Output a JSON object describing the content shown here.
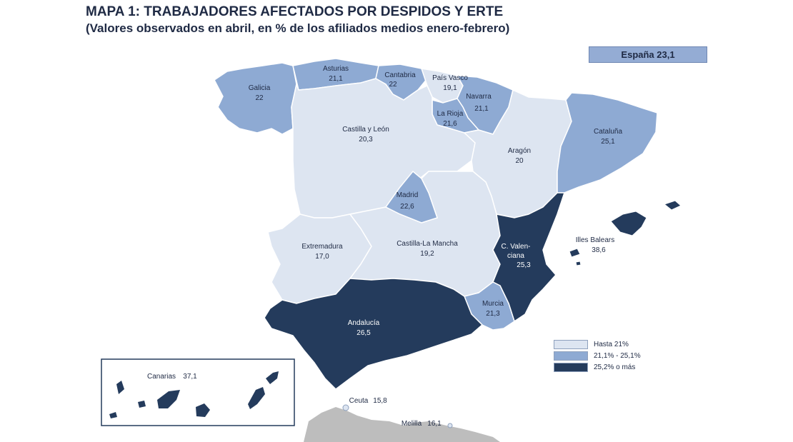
{
  "title": "MAPA 1: TRABAJADORES AFECTADOS POR DESPIDOS Y ERTE",
  "subtitle": "(Valores observados en abril, en % de los afiliados medios enero-febrero)",
  "espana_label": "España 23,1",
  "colors": {
    "low": "#dde5f1",
    "mid": "#8eaad3",
    "high": "#243b5c",
    "outside": "#bdbdbd",
    "border": "#ffffff"
  },
  "legend": [
    {
      "label": "Hasta 21%",
      "color": "#dde5f1"
    },
    {
      "label": "21,1% - 25,1%",
      "color": "#8eaad3"
    },
    {
      "label": "25,2% o más",
      "color": "#243b5c"
    }
  ],
  "regions": {
    "galicia": {
      "name": "Galicia",
      "value": "22"
    },
    "asturias": {
      "name": "Asturias",
      "value": "21,1"
    },
    "cantabria": {
      "name": "Cantabria",
      "value": "22"
    },
    "pais_vasco": {
      "name": "País Vasco",
      "value": "19,1"
    },
    "navarra": {
      "name": "Navarra",
      "value": "21,1"
    },
    "la_rioja": {
      "name": "La Rioja",
      "value": "21,6"
    },
    "castilla_leon": {
      "name": "Castilla y León",
      "value": "20,3"
    },
    "aragon": {
      "name": "Aragón",
      "value": "20"
    },
    "cataluna": {
      "name": "Cataluña",
      "value": "25,1"
    },
    "madrid": {
      "name": "Madrid",
      "value": "22,6"
    },
    "extremadura": {
      "name": "Extremadura",
      "value": "17,0"
    },
    "castilla_la_mancha": {
      "name": "Castilla-La Mancha",
      "value": "19,2"
    },
    "c_valenciana": {
      "name_1": "C. Valen-",
      "name_2": "ciana",
      "value": "25,3"
    },
    "illes_balears": {
      "name": "Illes Balears",
      "value": "38,6"
    },
    "murcia": {
      "name": "Murcia",
      "value": "21,3"
    },
    "andalucia": {
      "name": "Andalucía",
      "value": "26,5"
    },
    "canarias": {
      "name": "Canarias",
      "value": "37,1"
    },
    "ceuta": {
      "name": "Ceuta",
      "value": "15,8"
    },
    "melilla": {
      "name": "Melilla",
      "value": "16,1"
    }
  }
}
